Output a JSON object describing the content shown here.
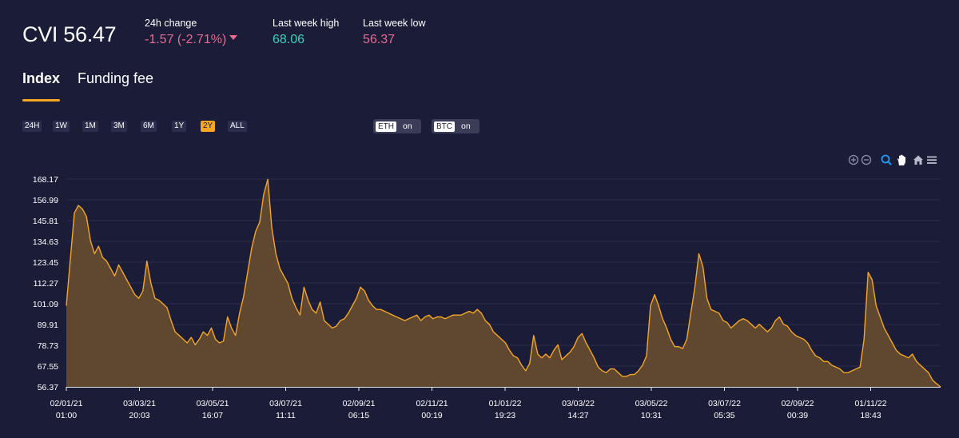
{
  "header": {
    "title": "CVI 56.47",
    "change_label": "24h change",
    "change_value": "-1.57 (-2.71%)",
    "high_label": "Last week high",
    "high_value": "68.06",
    "low_label": "Last week low",
    "low_value": "56.37"
  },
  "tabs": [
    {
      "label": "Index",
      "active": true
    },
    {
      "label": "Funding fee",
      "active": false
    }
  ],
  "ranges": [
    "24H",
    "1W",
    "1M",
    "3M",
    "6M",
    "1Y",
    "2Y",
    "ALL"
  ],
  "active_range": "2Y",
  "toggles": [
    {
      "key": "ETH",
      "state": "on"
    },
    {
      "key": "BTC",
      "state": "on"
    }
  ],
  "toolbar_icons": [
    "zoom-in-icon",
    "zoom-out-icon",
    "zoom-selection-icon",
    "pan-hand-icon",
    "home-reset-icon",
    "menu-icon"
  ],
  "colors": {
    "background": "#1b1c37",
    "line": "#f5a623",
    "area": "#6b4f2f",
    "negative": "#ea6a8f",
    "positive": "#3fd0b6"
  },
  "chart_data": {
    "type": "area",
    "y_ticks": [
      "56.37",
      "67.55",
      "78.73",
      "89.91",
      "101.09",
      "112.27",
      "123.45",
      "134.63",
      "145.81",
      "156.99",
      "168.17"
    ],
    "ylim": [
      56.37,
      168.17
    ],
    "x_ticks": [
      {
        "date": "02/01/21",
        "time": "01:00"
      },
      {
        "date": "03/03/21",
        "time": "20:03"
      },
      {
        "date": "03/05/21",
        "time": "16:07"
      },
      {
        "date": "03/07/21",
        "time": "11:11"
      },
      {
        "date": "02/09/21",
        "time": "06:15"
      },
      {
        "date": "02/11/21",
        "time": "00:19"
      },
      {
        "date": "01/01/22",
        "time": "19:23"
      },
      {
        "date": "03/03/22",
        "time": "14:27"
      },
      {
        "date": "03/05/22",
        "time": "10:31"
      },
      {
        "date": "03/07/22",
        "time": "05:35"
      },
      {
        "date": "02/09/22",
        "time": "00:39"
      },
      {
        "date": "01/11/22",
        "time": "18:43"
      }
    ],
    "series": [
      {
        "values": [
          100,
          125,
          150,
          154,
          152,
          148,
          135,
          128,
          132,
          126,
          124,
          120,
          116,
          122,
          118,
          114,
          110,
          106,
          104,
          108,
          124,
          112,
          104,
          103,
          101,
          99,
          92,
          86,
          84,
          82,
          80,
          83,
          79,
          82,
          86,
          84,
          88,
          82,
          80,
          81,
          94,
          88,
          84,
          96,
          105,
          118,
          131,
          140,
          145,
          160,
          168,
          142,
          128,
          120,
          116,
          112,
          104,
          99,
          95,
          110,
          103,
          98,
          96,
          102,
          92,
          90,
          88,
          89,
          92,
          93,
          96,
          100,
          104,
          110,
          108,
          103,
          100,
          98,
          98,
          97,
          96,
          95,
          94,
          93,
          92,
          93,
          94,
          95,
          92,
          94,
          95,
          93,
          94,
          94,
          93,
          94,
          95,
          95,
          95,
          96,
          97,
          96,
          98,
          96,
          92,
          90,
          86,
          84,
          82,
          80,
          76,
          73,
          72,
          68,
          65,
          69,
          84,
          74,
          72,
          74,
          72,
          76,
          79,
          71,
          73,
          75,
          78,
          83,
          85,
          80,
          76,
          72,
          67,
          65,
          64,
          66,
          66,
          64,
          62,
          62,
          63,
          63,
          65,
          68,
          73,
          100,
          106,
          100,
          93,
          88,
          82,
          78,
          78,
          77,
          82,
          96,
          110,
          128,
          121,
          104,
          98,
          97,
          96,
          92,
          91,
          88,
          90,
          92,
          93,
          92,
          90,
          88,
          90,
          88,
          86,
          88,
          92,
          94,
          90,
          89,
          86,
          84,
          83,
          82,
          80,
          76,
          73,
          72,
          70,
          70,
          68,
          67,
          66,
          64,
          64,
          65,
          66,
          67,
          82,
          118,
          114,
          100,
          94,
          88,
          84,
          80,
          76,
          74,
          73,
          72,
          74,
          70,
          68,
          66,
          64,
          60,
          58,
          56.37
        ]
      }
    ]
  }
}
